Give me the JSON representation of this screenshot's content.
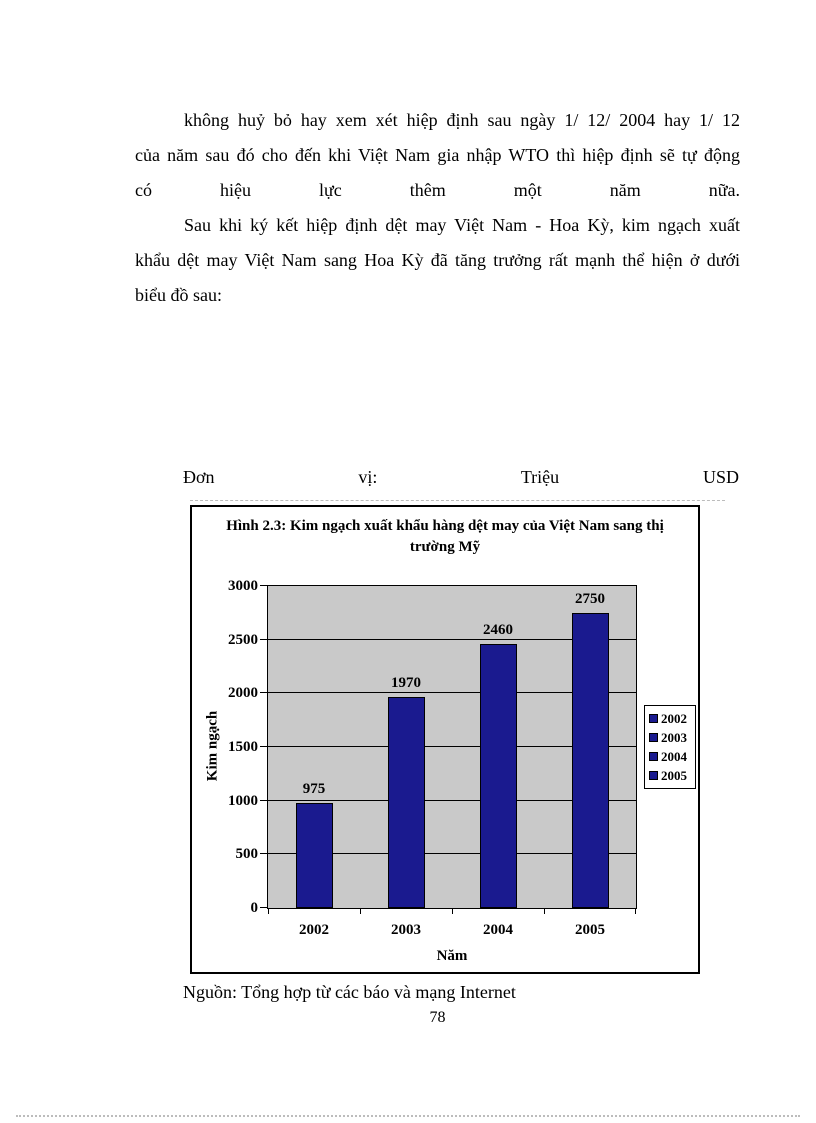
{
  "document": {
    "paragraphs": [
      {
        "lines": [
          "không huỷ bỏ hay xem xét hiệp định sau ngày 1/ 12/ 2004 hay 1/ 12",
          "của năm sau đó cho đến khi Việt Nam gia nhập WTO thì hiệp định sẽ tự động",
          "có hiệu lực thêm một năm nữa."
        ]
      },
      {
        "lines": [
          "Sau khi ký kết hiệp định dệt may Việt Nam - Hoa Kỳ, kim ngạch xuất",
          "khẩu dệt may Việt Nam sang Hoa Kỳ đã tăng trưởng rất mạnh thể hiện ở dưới",
          "biểu đồ sau:"
        ]
      }
    ],
    "unit_caption": "Đơn vị: Triệu USD",
    "source_caption": "Nguồn: Tổng hợp từ các báo và mạng Internet",
    "page_number": "78"
  },
  "chart_data": {
    "type": "bar",
    "title": "Hình 2.3: Kim ngạch xuất khẩu hàng dệt may của Việt Nam sang thị trường Mỹ",
    "categories": [
      "2002",
      "2003",
      "2004",
      "2005"
    ],
    "values": [
      975,
      1970,
      2460,
      2750
    ],
    "xlabel": "Năm",
    "ylabel": "Kim ngạch",
    "unit": "Triệu USD",
    "ylim": [
      0,
      3000
    ],
    "yticks": [
      0,
      500,
      1000,
      1500,
      2000,
      2500,
      3000
    ],
    "grid": "horizontal",
    "legend": [
      "2002",
      "2003",
      "2004",
      "2005"
    ],
    "legend_position": "right",
    "bar_color": "#1a1a8f",
    "plot_bg_color": "#c9c9c9"
  }
}
